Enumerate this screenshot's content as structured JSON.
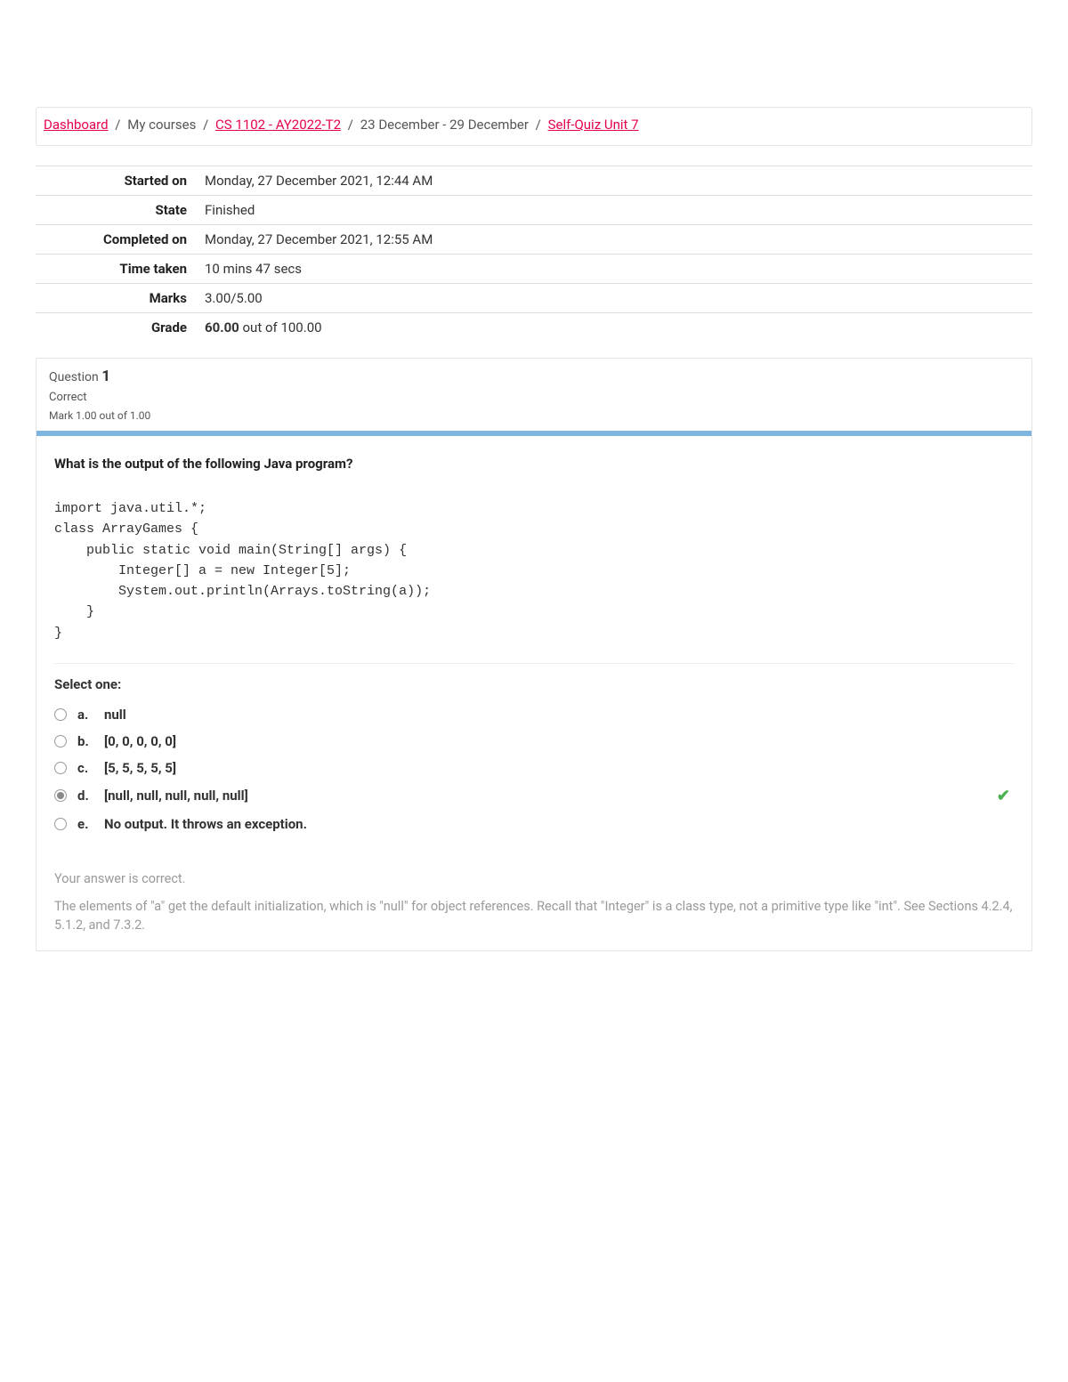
{
  "breadcrumb": {
    "dashboard": "Dashboard",
    "my_courses": "My courses",
    "course": "CS 1102 - AY2022-T2",
    "week": "23 December - 29 December",
    "quiz": "Self-Quiz Unit 7"
  },
  "summary": {
    "started_on_label": "Started on",
    "started_on": "Monday, 27 December 2021, 12:44 AM",
    "state_label": "State",
    "state": "Finished",
    "completed_on_label": "Completed on",
    "completed_on": "Monday, 27 December 2021, 12:55 AM",
    "time_taken_label": "Time taken",
    "time_taken": "10 mins 47 secs",
    "marks_label": "Marks",
    "marks": "3.00/5.00",
    "grade_label": "Grade",
    "grade_value": "60.00",
    "grade_suffix": " out of 100.00"
  },
  "question": {
    "label": "Question",
    "number": "1",
    "status": "Correct",
    "mark_line": "Mark 1.00 out of 1.00",
    "prompt": "What is the output of the following Java program?",
    "code": "import java.util.*;\nclass ArrayGames {\n    public static void main(String[] args) {\n        Integer[] a = new Integer[5];\n        System.out.println(Arrays.toString(a));\n    }\n}",
    "select_label": "Select one:",
    "options": [
      {
        "letter": "a.",
        "text": "null",
        "selected": false,
        "correct": false
      },
      {
        "letter": "b.",
        "text": "[0, 0, 0, 0, 0]",
        "selected": false,
        "correct": false
      },
      {
        "letter": "c.",
        "text": "[5, 5, 5, 5, 5]",
        "selected": false,
        "correct": false
      },
      {
        "letter": "d.",
        "text": "[null, null, null, null, null]",
        "selected": true,
        "correct": true
      },
      {
        "letter": "e.",
        "text": "No output. It throws an exception.",
        "selected": false,
        "correct": false
      }
    ],
    "feedback_correct": "Your answer is correct.",
    "feedback_text": "The elements of \"a\" get the default initialization, which is \"null\" for object references. Recall that \"Integer\" is a class type, not a primitive type like \"int\". See Sections 4.2.4, 5.1.2, and 7.3.2."
  },
  "colors": {
    "link": "#e6004c",
    "blue_bar": "#7fb6e0",
    "check": "#4caf50",
    "border": "#e5e5e5",
    "muted": "#9a9a9a"
  }
}
